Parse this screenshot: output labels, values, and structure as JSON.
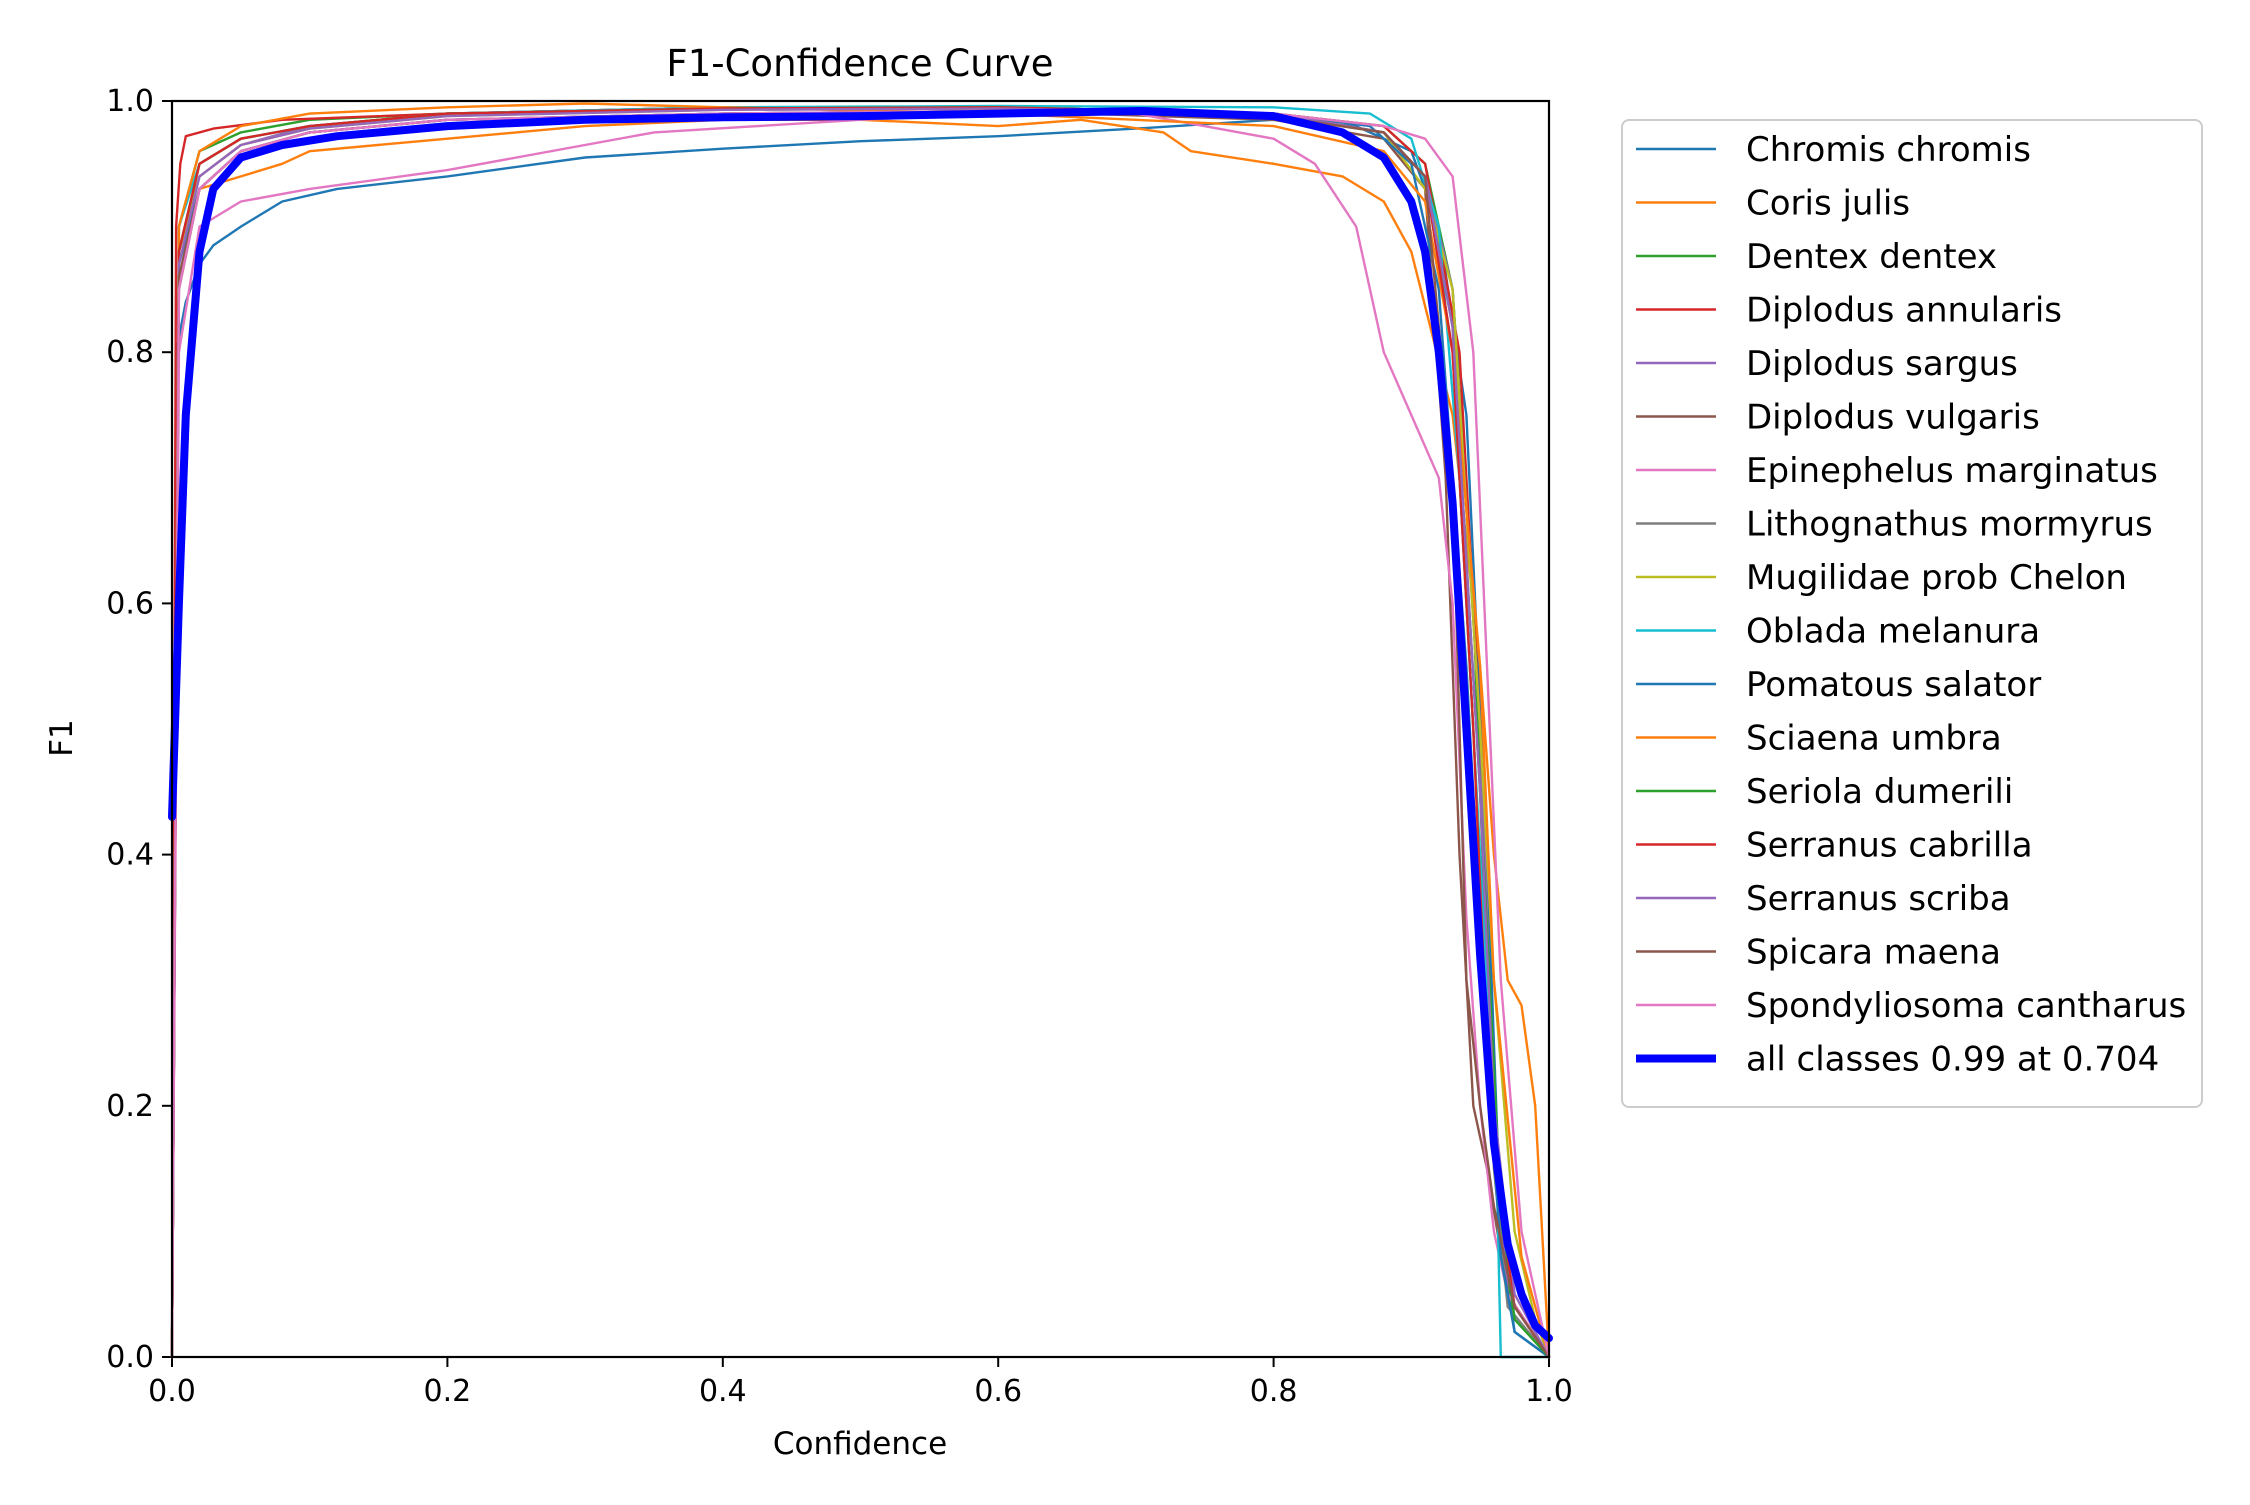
{
  "chart_data": {
    "type": "line",
    "title": "F1-Confidence Curve",
    "xlabel": "Confidence",
    "ylabel": "F1",
    "xlim": [
      0,
      1
    ],
    "ylim": [
      0,
      1
    ],
    "x_ticks": [
      "0.0",
      "0.2",
      "0.4",
      "0.6",
      "0.8",
      "1.0"
    ],
    "y_ticks": [
      "0.0",
      "0.2",
      "0.4",
      "0.6",
      "0.8",
      "1.0"
    ],
    "grid": false,
    "legend_position": "outside-right",
    "series": [
      {
        "name": "Chromis chromis",
        "color": "#1f77b4",
        "x": [
          0.0,
          0.003,
          0.01,
          0.02,
          0.03,
          0.05,
          0.08,
          0.12,
          0.2,
          0.3,
          0.4,
          0.5,
          0.6,
          0.7,
          0.8,
          0.86,
          0.9,
          0.92,
          0.94,
          0.955,
          0.965,
          0.975,
          1.0
        ],
        "y": [
          0.0,
          0.8,
          0.84,
          0.87,
          0.885,
          0.9,
          0.92,
          0.93,
          0.94,
          0.955,
          0.962,
          0.968,
          0.972,
          0.978,
          0.985,
          0.98,
          0.96,
          0.9,
          0.75,
          0.4,
          0.1,
          0.02,
          0.0
        ]
      },
      {
        "name": "Coris julis",
        "color": "#ff7f0e",
        "x": [
          0.0,
          0.005,
          0.02,
          0.05,
          0.08,
          0.1,
          0.2,
          0.3,
          0.4,
          0.5,
          0.6,
          0.66,
          0.72,
          0.74,
          0.8,
          0.85,
          0.88,
          0.9,
          0.93,
          0.95,
          0.96,
          0.97,
          0.98,
          0.99,
          1.0
        ],
        "y": [
          0.0,
          0.85,
          0.93,
          0.94,
          0.95,
          0.96,
          0.97,
          0.98,
          0.985,
          0.985,
          0.98,
          0.985,
          0.975,
          0.96,
          0.95,
          0.94,
          0.92,
          0.88,
          0.75,
          0.55,
          0.4,
          0.3,
          0.28,
          0.2,
          0.0
        ]
      },
      {
        "name": "Dentex dentex",
        "color": "#2ca02c",
        "x": [
          0.0,
          0.005,
          0.02,
          0.05,
          0.1,
          0.2,
          0.4,
          0.6,
          0.8,
          0.88,
          0.91,
          0.93,
          0.945,
          0.955,
          0.965,
          0.975,
          1.0
        ],
        "y": [
          0.0,
          0.9,
          0.96,
          0.975,
          0.985,
          0.99,
          0.995,
          0.995,
          0.99,
          0.98,
          0.95,
          0.85,
          0.6,
          0.3,
          0.1,
          0.03,
          0.0
        ]
      },
      {
        "name": "Diplodus annularis",
        "color": "#d62728",
        "x": [
          0.0,
          0.003,
          0.006,
          0.01,
          0.03,
          0.08,
          0.2,
          0.4,
          0.6,
          0.8,
          0.88,
          0.91,
          0.935,
          0.95,
          0.96,
          0.97,
          1.0
        ],
        "y": [
          0.0,
          0.9,
          0.95,
          0.972,
          0.978,
          0.985,
          0.99,
          0.995,
          0.995,
          0.99,
          0.98,
          0.95,
          0.8,
          0.5,
          0.2,
          0.05,
          0.0
        ]
      },
      {
        "name": "Diplodus sargus",
        "color": "#9467bd",
        "x": [
          0.0,
          0.005,
          0.02,
          0.05,
          0.1,
          0.2,
          0.4,
          0.6,
          0.8,
          0.88,
          0.91,
          0.93,
          0.95,
          0.96,
          0.97,
          1.0
        ],
        "y": [
          0.0,
          0.88,
          0.94,
          0.965,
          0.98,
          0.99,
          0.995,
          0.995,
          0.99,
          0.975,
          0.94,
          0.85,
          0.5,
          0.2,
          0.05,
          0.0
        ]
      },
      {
        "name": "Diplodus vulgaris",
        "color": "#8c564b",
        "x": [
          0.0,
          0.005,
          0.02,
          0.05,
          0.1,
          0.2,
          0.4,
          0.6,
          0.8,
          0.88,
          0.91,
          0.925,
          0.935,
          0.945,
          0.955,
          0.97,
          1.0
        ],
        "y": [
          0.0,
          0.85,
          0.93,
          0.96,
          0.975,
          0.985,
          0.99,
          0.992,
          0.985,
          0.97,
          0.93,
          0.7,
          0.4,
          0.2,
          0.15,
          0.05,
          0.0
        ]
      },
      {
        "name": "Epinephelus marginatus",
        "color": "#e377c2",
        "x": [
          0.0,
          0.005,
          0.02,
          0.05,
          0.1,
          0.2,
          0.35,
          0.5,
          0.6,
          0.7,
          0.8,
          0.83,
          0.86,
          0.88,
          0.9,
          0.92,
          0.93,
          0.94,
          0.95,
          0.96,
          0.97,
          1.0
        ],
        "y": [
          0.0,
          0.8,
          0.9,
          0.92,
          0.93,
          0.945,
          0.975,
          0.985,
          0.99,
          0.99,
          0.97,
          0.95,
          0.9,
          0.8,
          0.75,
          0.7,
          0.6,
          0.35,
          0.2,
          0.1,
          0.05,
          0.0
        ]
      },
      {
        "name": "Lithognathus mormyrus",
        "color": "#7f7f7f",
        "x": [
          0.0,
          0.005,
          0.02,
          0.05,
          0.1,
          0.2,
          0.4,
          0.6,
          0.8,
          0.88,
          0.91,
          0.93,
          0.945,
          0.96,
          0.97,
          1.0
        ],
        "y": [
          0.0,
          0.85,
          0.93,
          0.96,
          0.975,
          0.985,
          0.99,
          0.992,
          0.988,
          0.975,
          0.94,
          0.8,
          0.5,
          0.15,
          0.04,
          0.0
        ]
      },
      {
        "name": "Mugilidae prob Chelon",
        "color": "#bcbd22",
        "x": [
          0.0,
          0.005,
          0.02,
          0.05,
          0.1,
          0.2,
          0.4,
          0.6,
          0.8,
          0.88,
          0.91,
          0.93,
          0.95,
          0.96,
          0.975,
          0.99,
          1.0
        ],
        "y": [
          0.0,
          0.88,
          0.94,
          0.965,
          0.978,
          0.988,
          0.993,
          0.994,
          0.99,
          0.975,
          0.93,
          0.85,
          0.5,
          0.3,
          0.1,
          0.03,
          0.0
        ]
      },
      {
        "name": "Oblada melanura",
        "color": "#17becf",
        "x": [
          0.0,
          0.005,
          0.02,
          0.05,
          0.1,
          0.2,
          0.4,
          0.6,
          0.8,
          0.87,
          0.9,
          0.92,
          0.935,
          0.95,
          0.962,
          0.965,
          1.0
        ],
        "y": [
          0.0,
          0.9,
          0.95,
          0.97,
          0.98,
          0.99,
          0.995,
          0.996,
          0.995,
          0.99,
          0.97,
          0.9,
          0.7,
          0.4,
          0.15,
          0.0,
          0.0
        ]
      },
      {
        "name": "Pomatous salator",
        "color": "#1f77b4",
        "x": [
          0.0,
          0.005,
          0.02,
          0.05,
          0.1,
          0.2,
          0.4,
          0.6,
          0.8,
          0.87,
          0.9,
          0.92,
          0.94,
          0.955,
          0.965,
          0.975,
          1.0
        ],
        "y": [
          0.0,
          0.87,
          0.93,
          0.96,
          0.975,
          0.985,
          0.99,
          0.992,
          0.99,
          0.98,
          0.95,
          0.85,
          0.55,
          0.25,
          0.08,
          0.02,
          0.0
        ]
      },
      {
        "name": "Sciaena umbra",
        "color": "#ff7f0e",
        "x": [
          0.0,
          0.005,
          0.02,
          0.05,
          0.1,
          0.2,
          0.3,
          0.4,
          0.6,
          0.8,
          0.88,
          0.91,
          0.93,
          0.95,
          0.96,
          0.98,
          1.0
        ],
        "y": [
          0.0,
          0.9,
          0.96,
          0.98,
          0.99,
          0.995,
          0.998,
          0.995,
          0.99,
          0.98,
          0.96,
          0.92,
          0.8,
          0.55,
          0.3,
          0.08,
          0.0
        ]
      },
      {
        "name": "Seriola dumerili",
        "color": "#2ca02c",
        "x": [
          0.0,
          0.005,
          0.02,
          0.05,
          0.1,
          0.2,
          0.4,
          0.6,
          0.8,
          0.88,
          0.91,
          0.93,
          0.95,
          0.965,
          0.975,
          1.0
        ],
        "y": [
          0.0,
          0.88,
          0.95,
          0.97,
          0.98,
          0.99,
          0.994,
          0.995,
          0.99,
          0.975,
          0.94,
          0.82,
          0.45,
          0.12,
          0.03,
          0.0
        ]
      },
      {
        "name": "Serranus cabrilla",
        "color": "#d62728",
        "x": [
          0.0,
          0.005,
          0.02,
          0.05,
          0.1,
          0.2,
          0.4,
          0.6,
          0.8,
          0.88,
          0.91,
          0.93,
          0.945,
          0.955,
          0.965,
          0.975,
          1.0
        ],
        "y": [
          0.0,
          0.88,
          0.95,
          0.97,
          0.98,
          0.99,
          0.994,
          0.995,
          0.99,
          0.975,
          0.94,
          0.8,
          0.5,
          0.25,
          0.12,
          0.04,
          0.0
        ]
      },
      {
        "name": "Serranus scriba",
        "color": "#9467bd",
        "x": [
          0.0,
          0.005,
          0.02,
          0.05,
          0.1,
          0.2,
          0.4,
          0.6,
          0.8,
          0.88,
          0.91,
          0.93,
          0.95,
          0.96,
          0.975,
          1.0
        ],
        "y": [
          0.0,
          0.87,
          0.94,
          0.965,
          0.978,
          0.988,
          0.993,
          0.994,
          0.99,
          0.975,
          0.94,
          0.82,
          0.45,
          0.2,
          0.05,
          0.0
        ]
      },
      {
        "name": "Spicara maena",
        "color": "#8c564b",
        "x": [
          0.0,
          0.005,
          0.02,
          0.05,
          0.1,
          0.2,
          0.4,
          0.6,
          0.8,
          0.88,
          0.91,
          0.93,
          0.94,
          0.95,
          0.96,
          0.975,
          1.0
        ],
        "y": [
          0.0,
          0.86,
          0.93,
          0.96,
          0.975,
          0.985,
          0.99,
          0.992,
          0.988,
          0.975,
          0.94,
          0.7,
          0.3,
          0.2,
          0.12,
          0.04,
          0.0
        ]
      },
      {
        "name": "Spondyliosoma cantharus",
        "color": "#e377c2",
        "x": [
          0.0,
          0.005,
          0.02,
          0.05,
          0.1,
          0.2,
          0.4,
          0.6,
          0.8,
          0.88,
          0.91,
          0.93,
          0.945,
          0.955,
          0.965,
          0.98,
          1.0
        ],
        "y": [
          0.0,
          0.85,
          0.93,
          0.96,
          0.975,
          0.985,
          0.99,
          0.992,
          0.99,
          0.98,
          0.97,
          0.94,
          0.8,
          0.55,
          0.3,
          0.1,
          0.0
        ]
      },
      {
        "name": "all classes 0.99 at 0.704",
        "color": "#0000ff",
        "thick": true,
        "x": [
          0.0,
          0.005,
          0.01,
          0.02,
          0.03,
          0.05,
          0.08,
          0.12,
          0.2,
          0.3,
          0.4,
          0.5,
          0.6,
          0.704,
          0.8,
          0.85,
          0.88,
          0.9,
          0.91,
          0.92,
          0.93,
          0.94,
          0.95,
          0.96,
          0.97,
          0.98,
          0.99,
          1.0
        ],
        "y": [
          0.43,
          0.6,
          0.75,
          0.88,
          0.93,
          0.955,
          0.965,
          0.972,
          0.98,
          0.985,
          0.987,
          0.988,
          0.99,
          0.992,
          0.988,
          0.975,
          0.955,
          0.92,
          0.88,
          0.8,
          0.68,
          0.5,
          0.32,
          0.17,
          0.09,
          0.05,
          0.025,
          0.015
        ]
      }
    ]
  }
}
